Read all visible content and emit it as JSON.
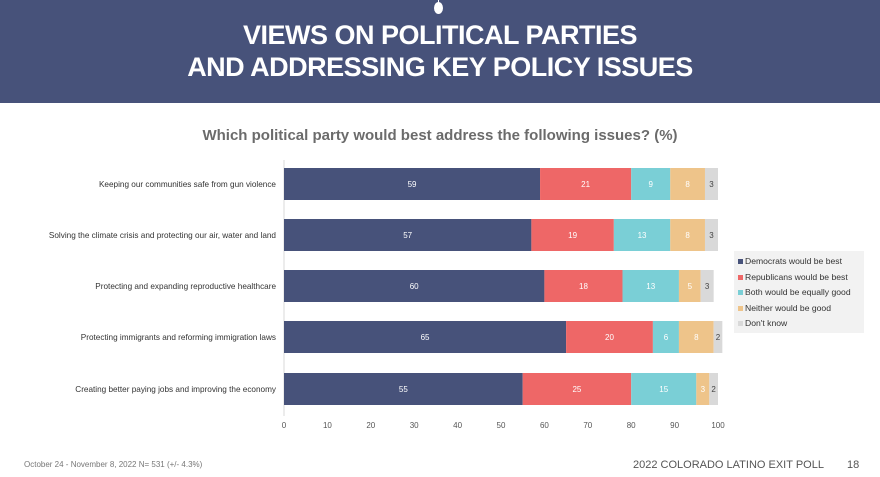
{
  "header": {
    "title_line1": "VIEWS ON POLITICAL PARTIES",
    "title_line2": "AND ADDRESSING KEY POLICY ISSUES"
  },
  "chart_data": {
    "type": "bar",
    "orientation": "horizontal",
    "stacked": true,
    "title": "Which political party would best address the following issues? (%)",
    "xlabel": "",
    "ylabel": "",
    "xlim": [
      0,
      100
    ],
    "x_ticks": [
      "0",
      "10",
      "20",
      "30",
      "40",
      "50",
      "60",
      "70",
      "80",
      "90",
      "100"
    ],
    "grid": false,
    "legend_position": "right",
    "categories": [
      "Keeping our communities safe from gun violence",
      "Solving the climate crisis and protecting our air, water and land",
      "Protecting and expanding reproductive healthcare",
      "Protecting immigrants and reforming immigration laws",
      "Creating better paying jobs and improving the economy"
    ],
    "series": [
      {
        "name": "Democrats would be best",
        "color": "#47527a",
        "label_color": "#ffffff",
        "values": [
          59,
          57,
          60,
          65,
          55
        ]
      },
      {
        "name": "Republicans would be best",
        "color": "#ee6767",
        "label_color": "#ffffff",
        "values": [
          21,
          19,
          18,
          20,
          25
        ]
      },
      {
        "name": "Both would be equally good",
        "color": "#7acfd6",
        "label_color": "#ffffff",
        "values": [
          9,
          13,
          13,
          6,
          15
        ]
      },
      {
        "name": "Neither would be good",
        "color": "#eec48a",
        "label_color": "#ffffff",
        "values": [
          8,
          8,
          5,
          8,
          3
        ]
      },
      {
        "name": "Don't know",
        "color": "#d9d9d9",
        "label_color": "#444444",
        "values": [
          3,
          3,
          3,
          2,
          2
        ]
      }
    ]
  },
  "footer": {
    "date_sample": "October 24 - November 8, 2022   N= 531 (+/- 4.3%)",
    "poll_name": "2022 COLORADO LATINO EXIT POLL",
    "page_number": "18"
  }
}
